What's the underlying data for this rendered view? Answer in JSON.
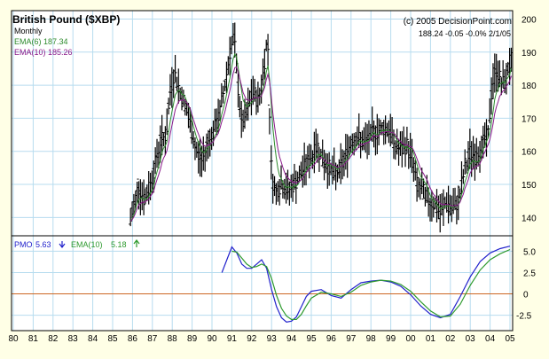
{
  "chart_data": [
    {
      "type": "ohlc-bar",
      "title": "British Pound ($XBP)",
      "credit": "(c) 2005 DecisionPoint.com",
      "period_label": "Monthly",
      "last_quote": "188.24  -0.05  -0.0%  2/1/05",
      "indicators": [
        {
          "label": "EMA(6) 187.34",
          "color": "#2e8b2e"
        },
        {
          "label": "EMA(10) 185.26",
          "color": "#8a1a8a"
        }
      ],
      "ylim": [
        135,
        202
      ],
      "yticks": [
        140,
        150,
        160,
        170,
        180,
        190,
        200
      ],
      "grid": true,
      "monthly_close_keypoints": [
        [
          1985.9,
          139
        ],
        [
          1986.3,
          150
        ],
        [
          1986.6,
          145
        ],
        [
          1986.9,
          150
        ],
        [
          1987.1,
          155
        ],
        [
          1987.4,
          163
        ],
        [
          1987.7,
          165
        ],
        [
          1987.9,
          178
        ],
        [
          1988.1,
          184
        ],
        [
          1988.4,
          178
        ],
        [
          1988.6,
          175
        ],
        [
          1988.9,
          168
        ],
        [
          1989.2,
          160
        ],
        [
          1989.5,
          157
        ],
        [
          1989.8,
          163
        ],
        [
          1990.1,
          166
        ],
        [
          1990.4,
          172
        ],
        [
          1990.7,
          182
        ],
        [
          1990.9,
          190
        ],
        [
          1991.1,
          195
        ],
        [
          1991.3,
          180
        ],
        [
          1991.5,
          168
        ],
        [
          1991.7,
          170
        ],
        [
          1991.9,
          175
        ],
        [
          1992.1,
          178
        ],
        [
          1992.3,
          175
        ],
        [
          1992.5,
          180
        ],
        [
          1992.7,
          190
        ],
        [
          1992.8,
          195
        ],
        [
          1992.9,
          172
        ],
        [
          1993.0,
          152
        ],
        [
          1993.2,
          148
        ],
        [
          1993.5,
          150
        ],
        [
          1993.8,
          148
        ],
        [
          1994.1,
          150
        ],
        [
          1994.4,
          152
        ],
        [
          1994.7,
          156
        ],
        [
          1995.0,
          158
        ],
        [
          1995.3,
          162
        ],
        [
          1995.6,
          157
        ],
        [
          1995.9,
          155
        ],
        [
          1996.2,
          153
        ],
        [
          1996.5,
          155
        ],
        [
          1996.8,
          160
        ],
        [
          1997.1,
          164
        ],
        [
          1997.4,
          164
        ],
        [
          1997.7,
          162
        ],
        [
          1998.0,
          165
        ],
        [
          1998.3,
          166
        ],
        [
          1998.6,
          167
        ],
        [
          1998.9,
          167
        ],
        [
          1999.2,
          162
        ],
        [
          1999.5,
          160
        ],
        [
          1999.8,
          162
        ],
        [
          2000.1,
          158
        ],
        [
          2000.3,
          150
        ],
        [
          2000.6,
          148
        ],
        [
          2000.9,
          145
        ],
        [
          2001.2,
          144
        ],
        [
          2001.5,
          141
        ],
        [
          2001.8,
          145
        ],
        [
          2002.1,
          142
        ],
        [
          2002.4,
          145
        ],
        [
          2002.7,
          154
        ],
        [
          2003.0,
          160
        ],
        [
          2003.3,
          158
        ],
        [
          2003.6,
          162
        ],
        [
          2003.9,
          165
        ],
        [
          2004.1,
          180
        ],
        [
          2004.3,
          185
        ],
        [
          2004.5,
          182
        ],
        [
          2004.7,
          180
        ],
        [
          2004.9,
          185
        ],
        [
          2005.1,
          188
        ]
      ]
    },
    {
      "type": "line",
      "labels": [
        "PMO",
        "5.63",
        "EMA(10)",
        "5.18"
      ],
      "ylim": [
        -4,
        6.5
      ],
      "yticks": [
        -2.5,
        0,
        2.5,
        5.0
      ],
      "ytick_labels": [
        "-2.5",
        "0",
        "2.5",
        "5.0"
      ],
      "zero_line": true,
      "series": [
        {
          "name": "PMO",
          "color": "#2222cc",
          "x": [
            1990.5,
            1990.75,
            1991.0,
            1991.25,
            1991.5,
            1991.75,
            1992.0,
            1992.25,
            1992.5,
            1992.75,
            1993.0,
            1993.25,
            1993.5,
            1993.75,
            1994.0,
            1994.25,
            1994.5,
            1994.75,
            1995.0,
            1995.5,
            1996.0,
            1996.5,
            1997.0,
            1997.5,
            1998.0,
            1998.5,
            1999.0,
            1999.5,
            2000.0,
            2000.5,
            2001.0,
            2001.5,
            2002.0,
            2002.5,
            2003.0,
            2003.5,
            2004.0,
            2004.5,
            2005.0
          ],
          "values": [
            2.5,
            4.0,
            5.5,
            4.8,
            3.5,
            3.0,
            3.0,
            3.5,
            4.0,
            3.0,
            0.5,
            -1.5,
            -2.8,
            -3.3,
            -3.2,
            -2.7,
            -1.5,
            -0.3,
            0.3,
            0.5,
            -0.2,
            -0.5,
            0.5,
            1.3,
            1.5,
            1.6,
            1.4,
            0.9,
            -0.1,
            -1.4,
            -2.4,
            -2.8,
            -2.4,
            -0.3,
            2.0,
            3.8,
            4.8,
            5.3,
            5.6
          ]
        },
        {
          "name": "EMA(10)",
          "color": "#2e9a2e",
          "x": [
            1991.0,
            1991.25,
            1991.5,
            1991.75,
            1992.0,
            1992.25,
            1992.5,
            1992.75,
            1993.0,
            1993.25,
            1993.5,
            1993.75,
            1994.0,
            1994.25,
            1994.5,
            1994.75,
            1995.0,
            1995.5,
            1996.0,
            1996.5,
            1997.0,
            1997.5,
            1998.0,
            1998.5,
            1999.0,
            1999.5,
            2000.0,
            2000.5,
            2001.0,
            2001.5,
            2002.0,
            2002.5,
            2003.0,
            2003.5,
            2004.0,
            2004.5,
            2005.0
          ],
          "values": [
            5.0,
            4.9,
            4.2,
            3.5,
            3.1,
            3.2,
            3.5,
            3.2,
            1.8,
            -0.2,
            -1.7,
            -2.6,
            -3.0,
            -3.0,
            -2.4,
            -1.4,
            -0.5,
            0.2,
            0.0,
            -0.3,
            0.2,
            1.0,
            1.4,
            1.6,
            1.5,
            1.1,
            0.3,
            -0.9,
            -2.0,
            -2.7,
            -2.6,
            -1.2,
            1.0,
            2.8,
            4.0,
            4.7,
            5.2
          ]
        }
      ]
    }
  ],
  "x_axis": {
    "ticks": [
      "80",
      "81",
      "82",
      "83",
      "84",
      "85",
      "86",
      "87",
      "88",
      "89",
      "90",
      "91",
      "92",
      "93",
      "94",
      "95",
      "96",
      "97",
      "98",
      "99",
      "00",
      "01",
      "02",
      "03",
      "04",
      "05"
    ],
    "start_year": 1980
  },
  "colors": {
    "background": "#ffffe6",
    "plot_bg": "#ffffff",
    "grid": "#b7dcef",
    "bars": "#000000",
    "zero_line": "#cc6622",
    "border": "#000000"
  }
}
